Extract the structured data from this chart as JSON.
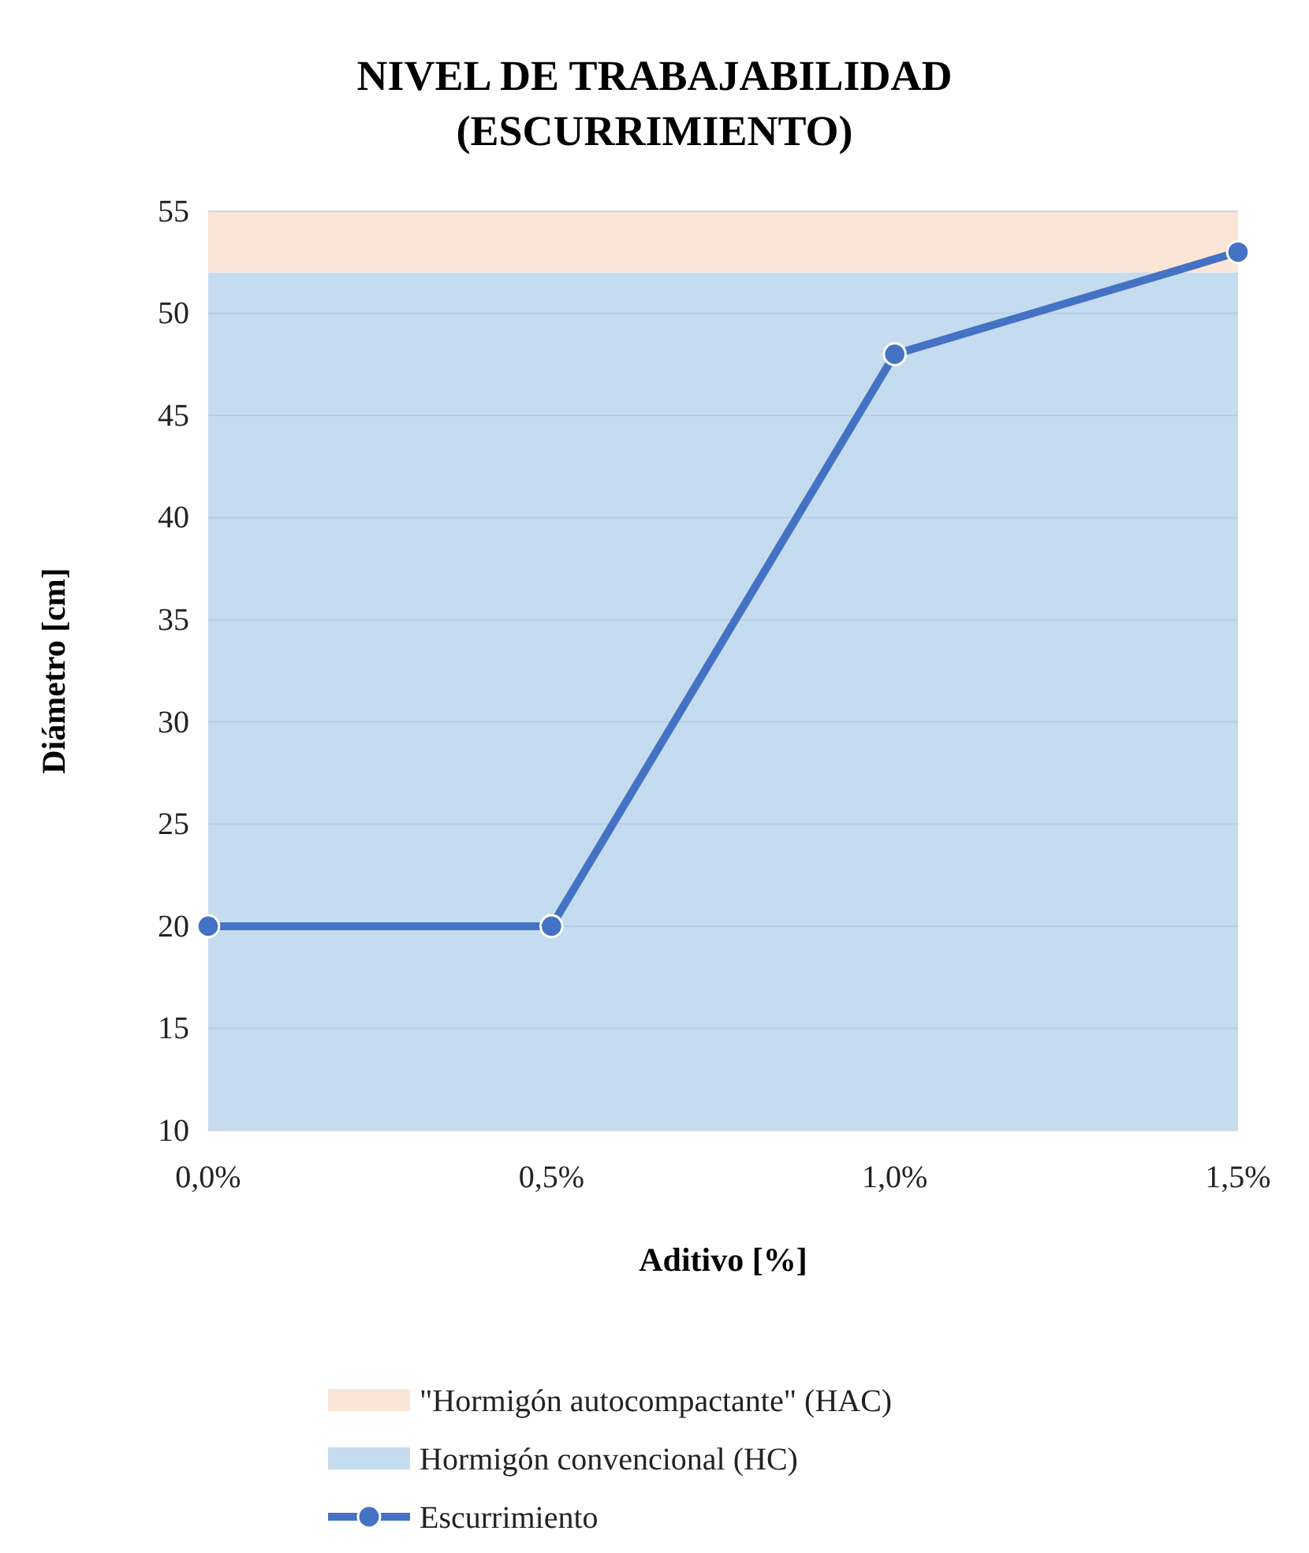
{
  "chart_data": {
    "type": "line",
    "title": "NIVEL DE TRABAJABILIDAD\n(ESCURRIMIENTO)",
    "xlabel": "Aditivo [%]",
    "ylabel": "Diámetro [cm]",
    "categories": [
      "0,0%",
      "0,5%",
      "1,0%",
      "1,5%"
    ],
    "series": [
      {
        "name": "Escurrimiento",
        "color": "#4472c4",
        "values": [
          20,
          20,
          48,
          53
        ]
      }
    ],
    "ylim": [
      10,
      55
    ],
    "yticks": [
      10,
      15,
      20,
      25,
      30,
      35,
      40,
      45,
      50,
      55
    ],
    "grid": "y",
    "marker": "circle",
    "line_style": "solid",
    "legend": "bottom",
    "bands": [
      {
        "axis": "y",
        "from": 52,
        "to": 55,
        "label": "\"Hormigón autocompactante\" (HAC)",
        "color": "#fbe5d6"
      },
      {
        "axis": "y",
        "from": 10,
        "to": 52,
        "label": "Hormigón convencional (HC)",
        "color": "#c5dbef"
      }
    ]
  }
}
